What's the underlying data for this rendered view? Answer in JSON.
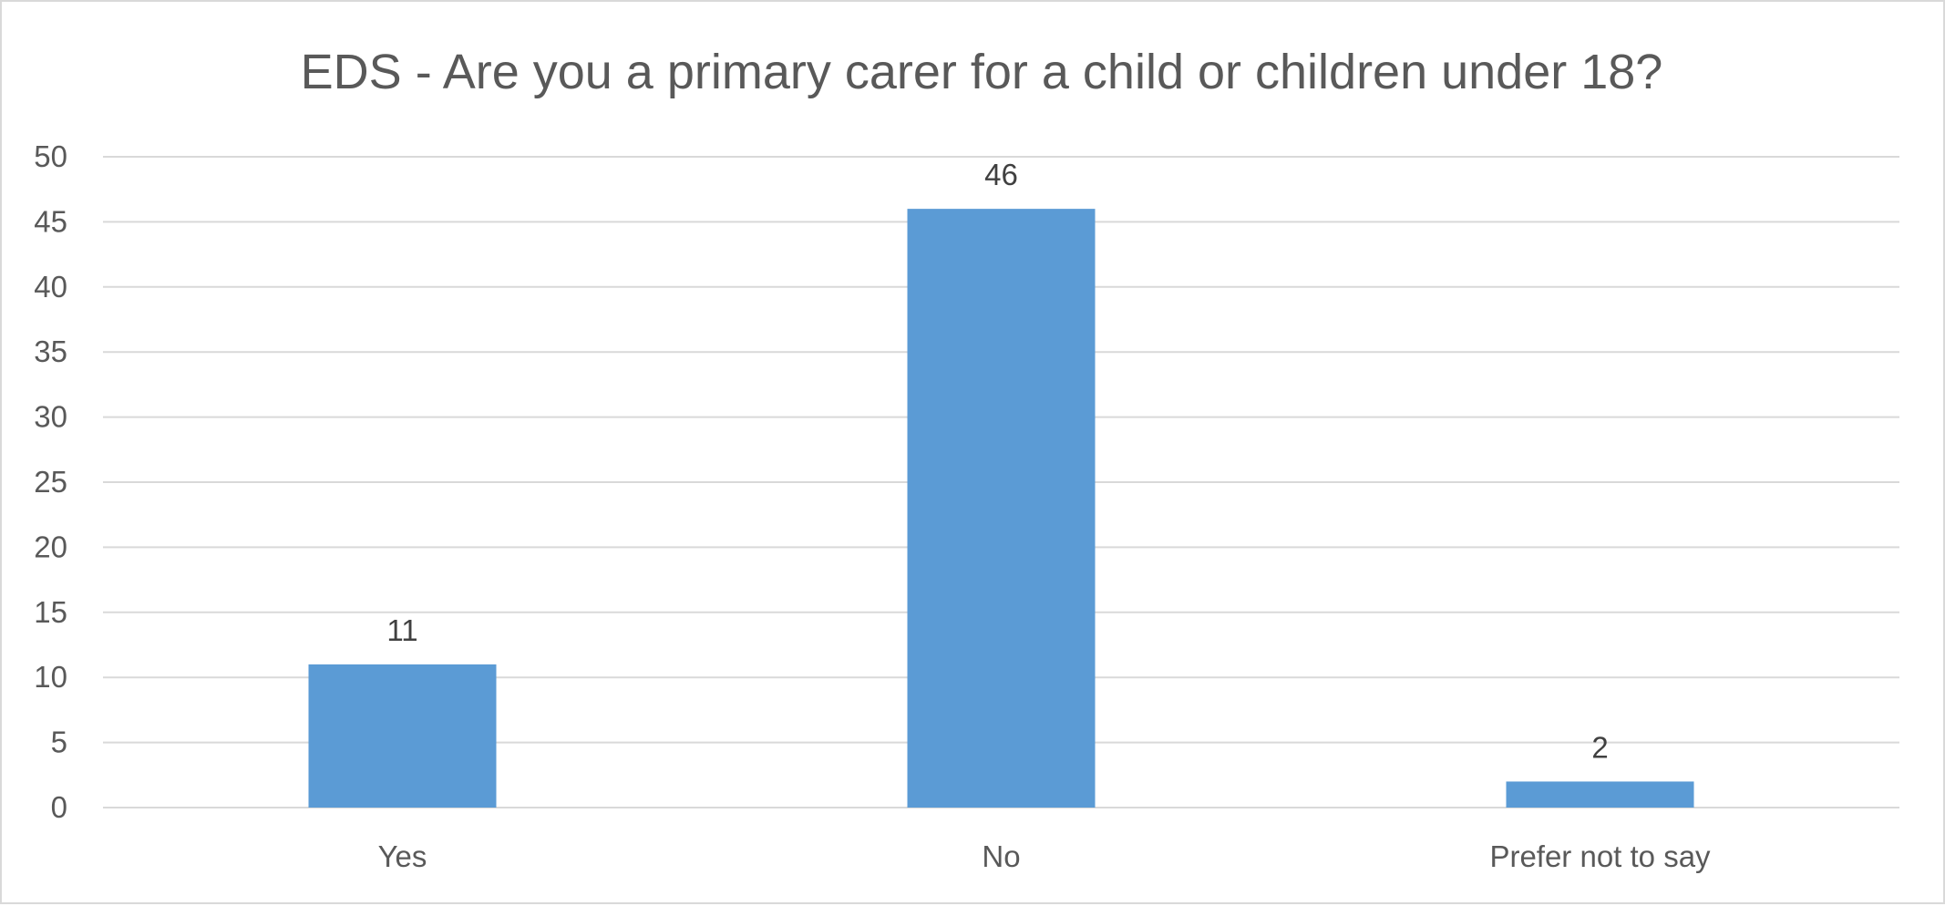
{
  "chart_data": {
    "type": "bar",
    "title": "EDS - Are you a primary carer for a child or children under 18?",
    "categories": [
      "Yes",
      "No",
      "Prefer not to say"
    ],
    "series": [
      {
        "values": [
          11,
          46,
          2
        ],
        "color": "#5b9bd5"
      }
    ],
    "data_labels": [
      "11",
      "46",
      "2"
    ],
    "y_ticks": [
      "0",
      "5",
      "10",
      "15",
      "20",
      "25",
      "30",
      "35",
      "40",
      "45",
      "50"
    ],
    "ylim": [
      0,
      50
    ],
    "grid": true,
    "legend": "none",
    "colors": {
      "bar": "#5b9bd5",
      "grid": "#d9d9d9",
      "text": "#595959"
    }
  }
}
